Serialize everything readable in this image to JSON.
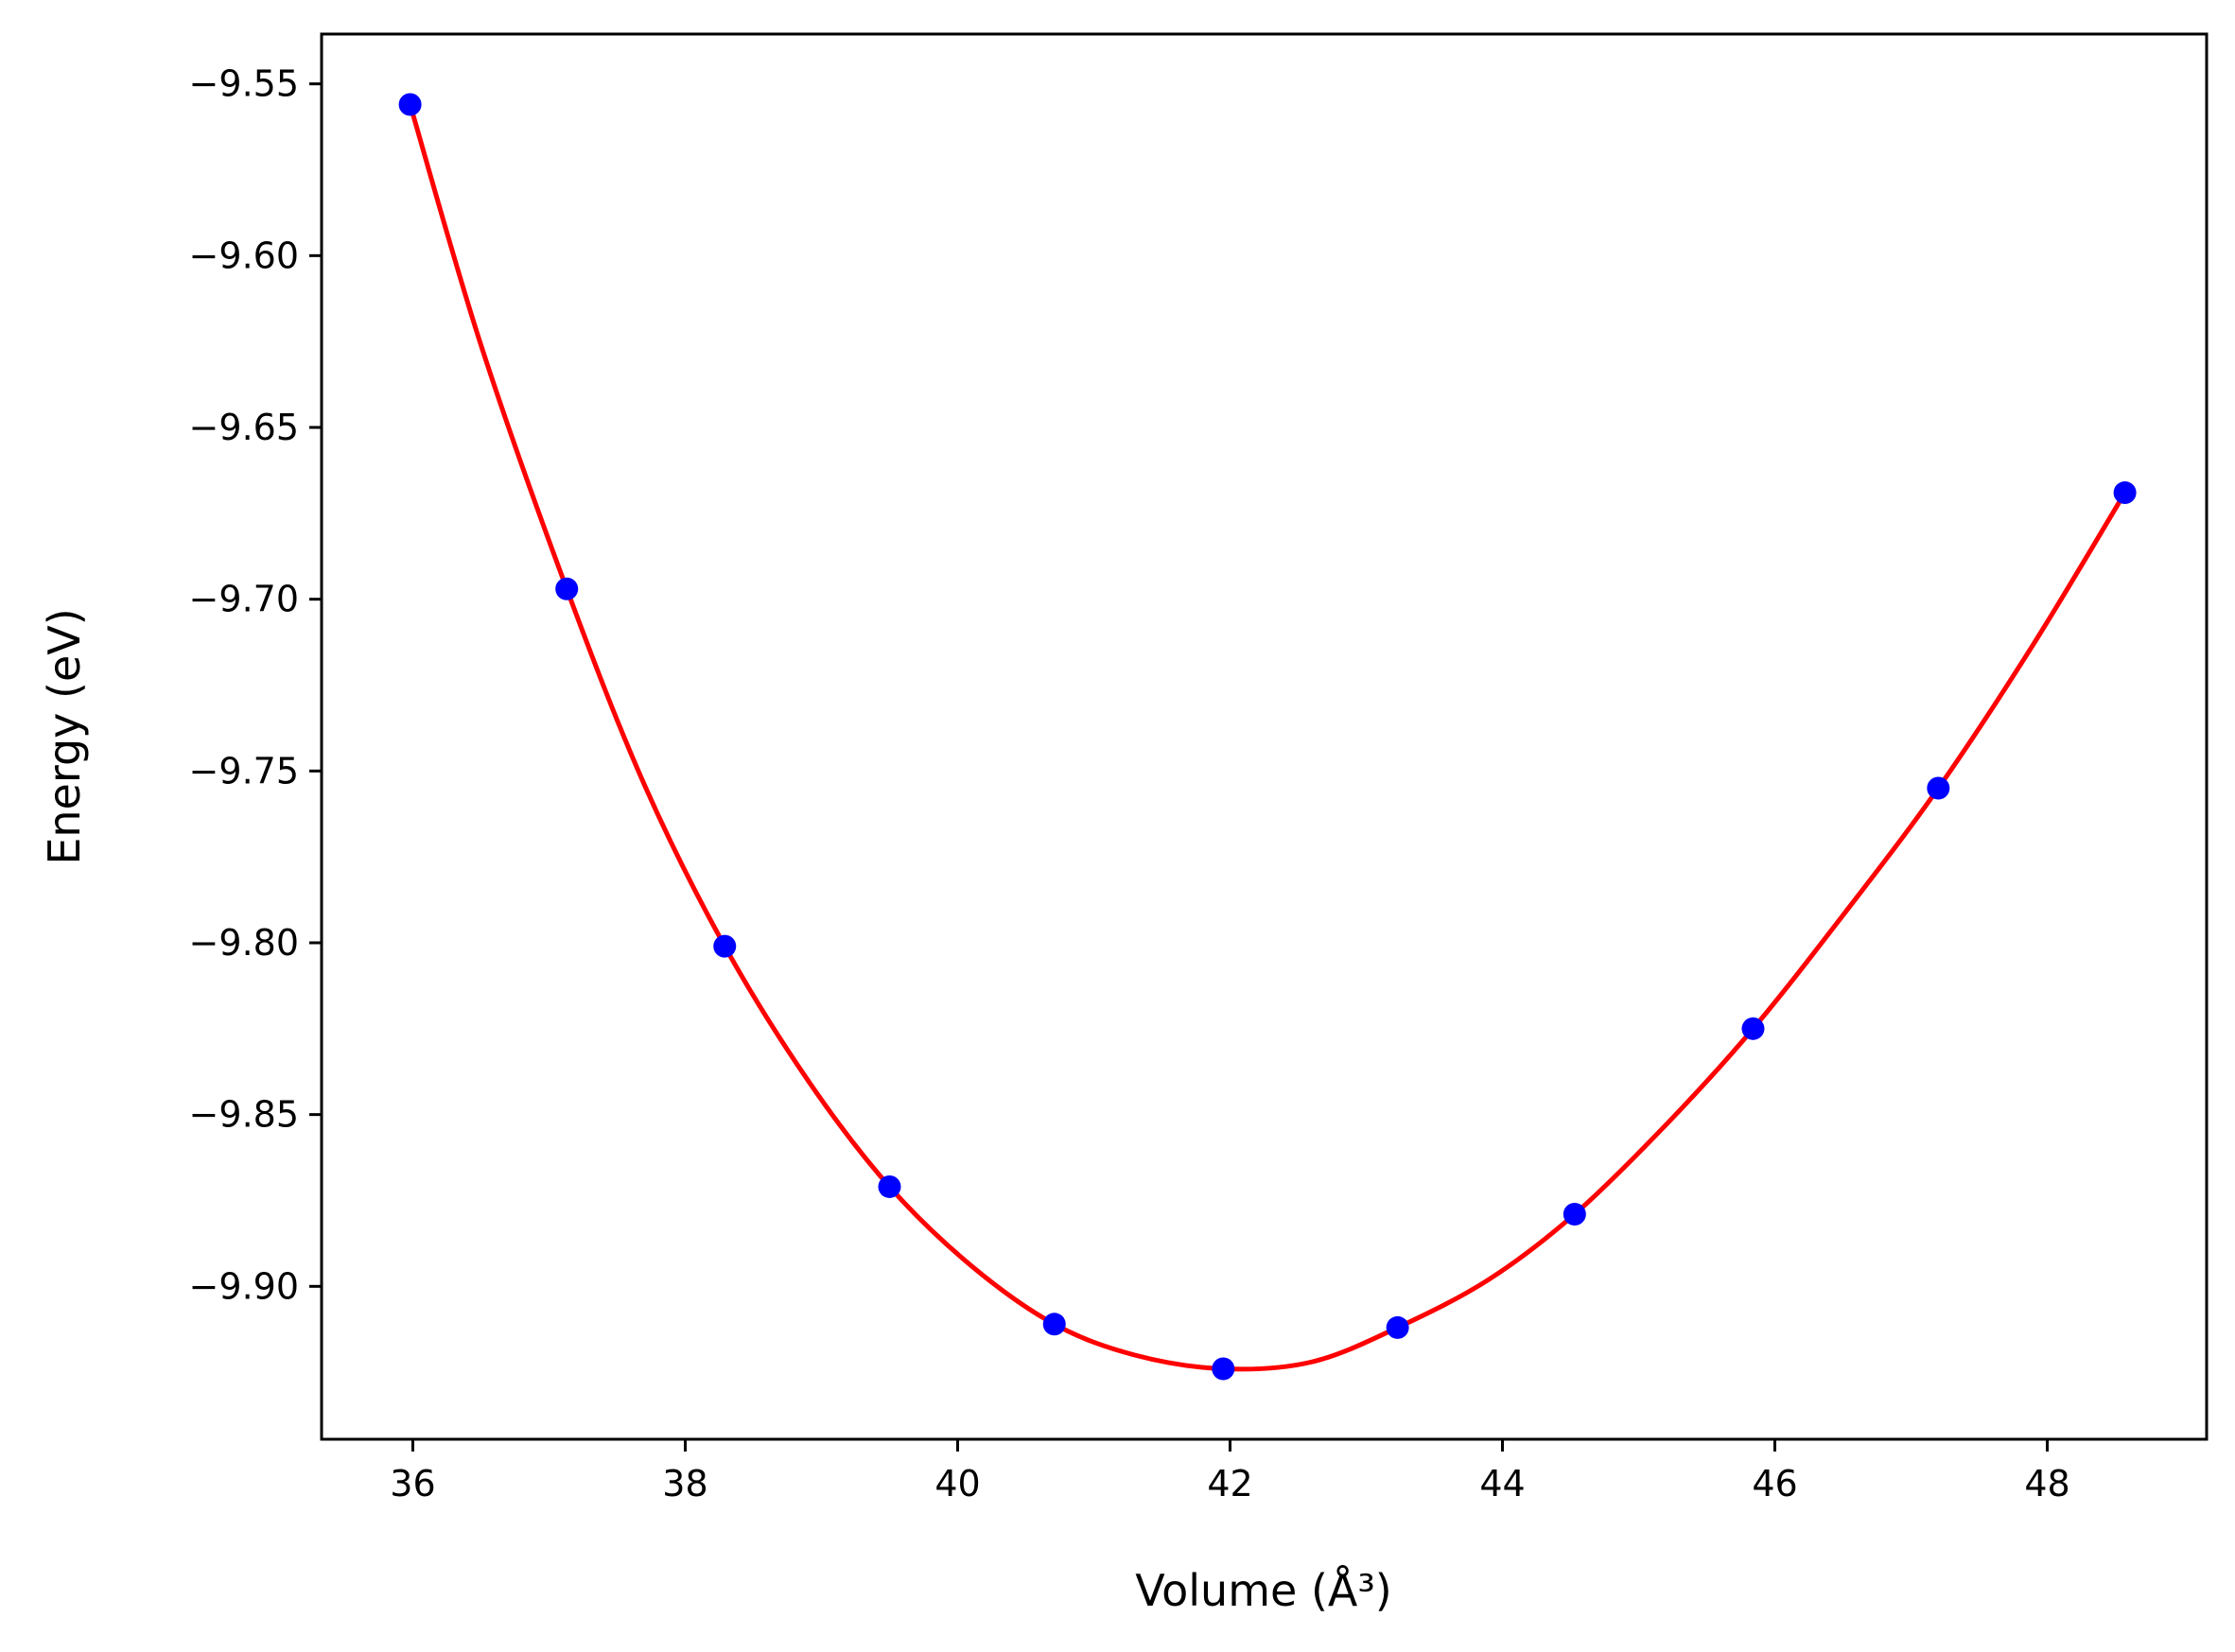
{
  "chart_data": {
    "type": "scatter",
    "xlabel": "Volume (Å³)",
    "ylabel": "Energy (eV)",
    "xlim": [
      35.33,
      49.17
    ],
    "ylim": [
      -9.9445,
      -9.5355
    ],
    "xticks": [
      36,
      38,
      40,
      42,
      44,
      46,
      48
    ],
    "xtick_labels": [
      "36",
      "38",
      "40",
      "42",
      "44",
      "46",
      "48"
    ],
    "yticks": [
      -9.55,
      -9.6,
      -9.65,
      -9.7,
      -9.75,
      -9.8,
      -9.85,
      -9.9
    ],
    "ytick_labels": [
      "−9.55",
      "−9.60",
      "−9.65",
      "−9.70",
      "−9.75",
      "−9.80",
      "−9.85",
      "−9.90"
    ],
    "grid": false,
    "series": [
      {
        "kind": "points",
        "color": "#0000ff",
        "x": [
          35.98,
          37.13,
          38.29,
          39.5,
          40.71,
          41.95,
          43.23,
          44.53,
          45.84,
          47.2,
          48.57
        ],
        "y": [
          -9.556,
          -9.697,
          -9.801,
          -9.871,
          -9.911,
          -9.924,
          -9.912,
          -9.879,
          -9.825,
          -9.755,
          -9.669
        ]
      },
      {
        "kind": "fit-curve",
        "color": "#ff0000",
        "x": [
          35.98,
          36.5,
          37.13,
          37.7,
          38.29,
          38.9,
          39.5,
          40.1,
          40.71,
          41.3,
          41.95,
          42.6,
          43.23,
          43.9,
          44.53,
          45.2,
          45.84,
          46.5,
          47.2,
          47.9,
          48.57
        ],
        "y": [
          -9.556,
          -9.626,
          -9.697,
          -9.754,
          -9.801,
          -9.84,
          -9.871,
          -9.894,
          -9.911,
          -9.92,
          -9.924,
          -9.922,
          -9.912,
          -9.898,
          -9.879,
          -9.853,
          -9.825,
          -9.792,
          -9.755,
          -9.713,
          -9.669
        ]
      }
    ]
  }
}
